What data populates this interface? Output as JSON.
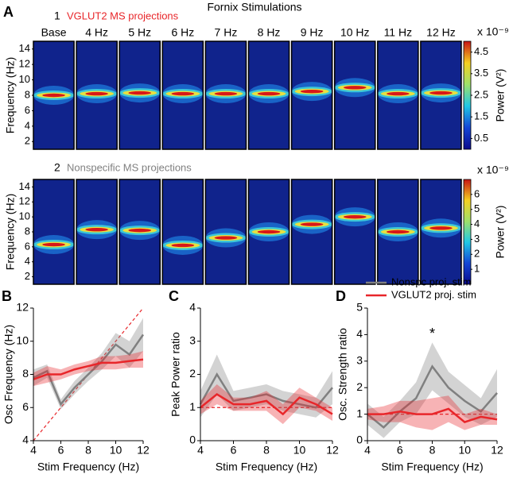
{
  "chart_data": [
    {
      "type": "heatmap",
      "panel_label": "A",
      "title": "Fornix Stimulations",
      "row_number": "1",
      "subtitle": "VGLUT2 MS projections",
      "subtitle_color": "#e8262a",
      "categories": [
        "Base",
        "4 Hz",
        "5 Hz",
        "6 Hz",
        "7 Hz",
        "8 Hz",
        "9 Hz",
        "10 Hz",
        "11 Hz",
        "12 Hz"
      ],
      "values": [
        8,
        8.2,
        8.3,
        8.2,
        8.2,
        8.2,
        8.5,
        9,
        8.2,
        8.3
      ],
      "y_label": "Frequency (Hz)",
      "ylim": [
        1,
        15
      ],
      "yticks": [
        2,
        4,
        6,
        8,
        10,
        12,
        14
      ],
      "colorbar_label": "Power (V²)",
      "colorbar_scale": "x 10⁻⁹",
      "colorbar_lim": [
        0,
        5
      ],
      "colorbar_ticks": [
        0.5,
        1.5,
        2.5,
        3.5,
        4.5
      ]
    },
    {
      "type": "heatmap",
      "row_number": "2",
      "subtitle": "Nonspecific MS projections",
      "subtitle_color": "#808080",
      "categories": [
        null,
        null,
        null,
        null,
        null,
        null,
        null,
        null,
        null,
        null
      ],
      "values": [
        6.3,
        8.3,
        8.2,
        6.2,
        7.2,
        8,
        9,
        10,
        8,
        8.5
      ],
      "y_label": "Frequency (Hz)",
      "ylim": [
        1,
        15
      ],
      "yticks": [
        2,
        4,
        6,
        8,
        10,
        12,
        14
      ],
      "colorbar_label": "Power (V²)",
      "colorbar_scale": "x 10⁻⁹",
      "colorbar_lim": [
        0,
        7
      ],
      "colorbar_ticks": [
        1,
        2,
        3,
        4,
        5,
        6
      ]
    },
    {
      "type": "line",
      "panel_label": "B",
      "x_label": "Stim Frequency (Hz)",
      "y_label": "Osc Frequency (Hz)",
      "x": [
        4,
        5,
        6,
        7,
        8,
        9,
        10,
        11,
        12
      ],
      "xlim": [
        4,
        12
      ],
      "xticks": [
        4,
        6,
        8,
        10,
        12
      ],
      "ylim": [
        4,
        12
      ],
      "yticks": [
        4,
        6,
        8,
        10,
        12
      ],
      "reference": {
        "x": [
          4,
          12
        ],
        "y": [
          4,
          12
        ],
        "color": "#e8262a"
      },
      "series": [
        {
          "color": "#808080",
          "values": [
            7.8,
            8.2,
            6.2,
            7.2,
            8.0,
            8.8,
            9.8,
            9.2,
            10.4
          ],
          "errors": [
            0.5,
            0.4,
            0.3,
            0.4,
            0.4,
            0.5,
            0.7,
            0.8,
            1.0
          ]
        },
        {
          "color": "#e8262a",
          "values": [
            7.7,
            8.0,
            8.0,
            8.3,
            8.5,
            8.7,
            8.7,
            8.8,
            8.9
          ],
          "errors": [
            0.4,
            0.5,
            0.3,
            0.3,
            0.3,
            0.4,
            0.4,
            0.4,
            0.5
          ]
        }
      ]
    },
    {
      "type": "line",
      "panel_label": "C",
      "x_label": "Stim Frequency (Hz)",
      "y_label": "Peak Power ratio",
      "x": [
        4,
        5,
        6,
        7,
        8,
        9,
        10,
        11,
        12
      ],
      "xlim": [
        4,
        12
      ],
      "xticks": [
        4,
        6,
        8,
        10,
        12
      ],
      "ylim": [
        0,
        4
      ],
      "yticks": [
        0,
        1,
        2,
        3,
        4
      ],
      "reference": {
        "x": [
          4,
          12
        ],
        "y": [
          1,
          1
        ],
        "color": "#e8262a"
      },
      "series": [
        {
          "color": "#808080",
          "values": [
            1.1,
            2.0,
            1.2,
            1.3,
            1.4,
            1.2,
            1.1,
            1.0,
            1.6
          ],
          "errors": [
            0.4,
            0.6,
            0.3,
            0.3,
            0.3,
            0.3,
            0.3,
            0.3,
            0.5
          ]
        },
        {
          "color": "#e8262a",
          "values": [
            1.0,
            1.4,
            1.1,
            1.1,
            1.2,
            0.8,
            1.3,
            1.1,
            0.8
          ],
          "errors": [
            0.2,
            0.3,
            0.2,
            0.2,
            0.3,
            0.3,
            0.3,
            0.2,
            0.2
          ]
        }
      ]
    },
    {
      "type": "line",
      "panel_label": "D",
      "x_label": "Stim Frequency (Hz)",
      "y_label": "Osc. Strength ratio",
      "x": [
        4,
        5,
        6,
        7,
        8,
        9,
        10,
        11,
        12
      ],
      "xlim": [
        4,
        12
      ],
      "xticks": [
        4,
        6,
        8,
        10,
        12
      ],
      "ylim": [
        0,
        5
      ],
      "yticks": [
        0,
        1,
        2,
        3,
        4,
        5
      ],
      "reference": {
        "x": [
          4,
          12
        ],
        "y": [
          1,
          1
        ],
        "color": "#e8262a"
      },
      "annotation": "*",
      "annotation_x": 8,
      "legend": "upper right",
      "series": [
        {
          "name": "Nonspc proj. stim",
          "color": "#808080",
          "values": [
            1.0,
            0.5,
            1.1,
            1.6,
            2.8,
            2.0,
            1.5,
            1.1,
            1.8
          ],
          "errors": [
            0.4,
            0.4,
            0.4,
            0.6,
            0.9,
            0.6,
            0.6,
            0.5,
            0.9
          ]
        },
        {
          "name": "VGLUT2 proj. stim",
          "color": "#e8262a",
          "values": [
            1.0,
            1.0,
            1.1,
            1.0,
            1.0,
            1.2,
            0.7,
            0.9,
            0.8
          ],
          "errors": [
            0.2,
            0.3,
            0.4,
            0.5,
            0.6,
            0.5,
            0.3,
            0.3,
            0.2
          ]
        }
      ]
    }
  ]
}
